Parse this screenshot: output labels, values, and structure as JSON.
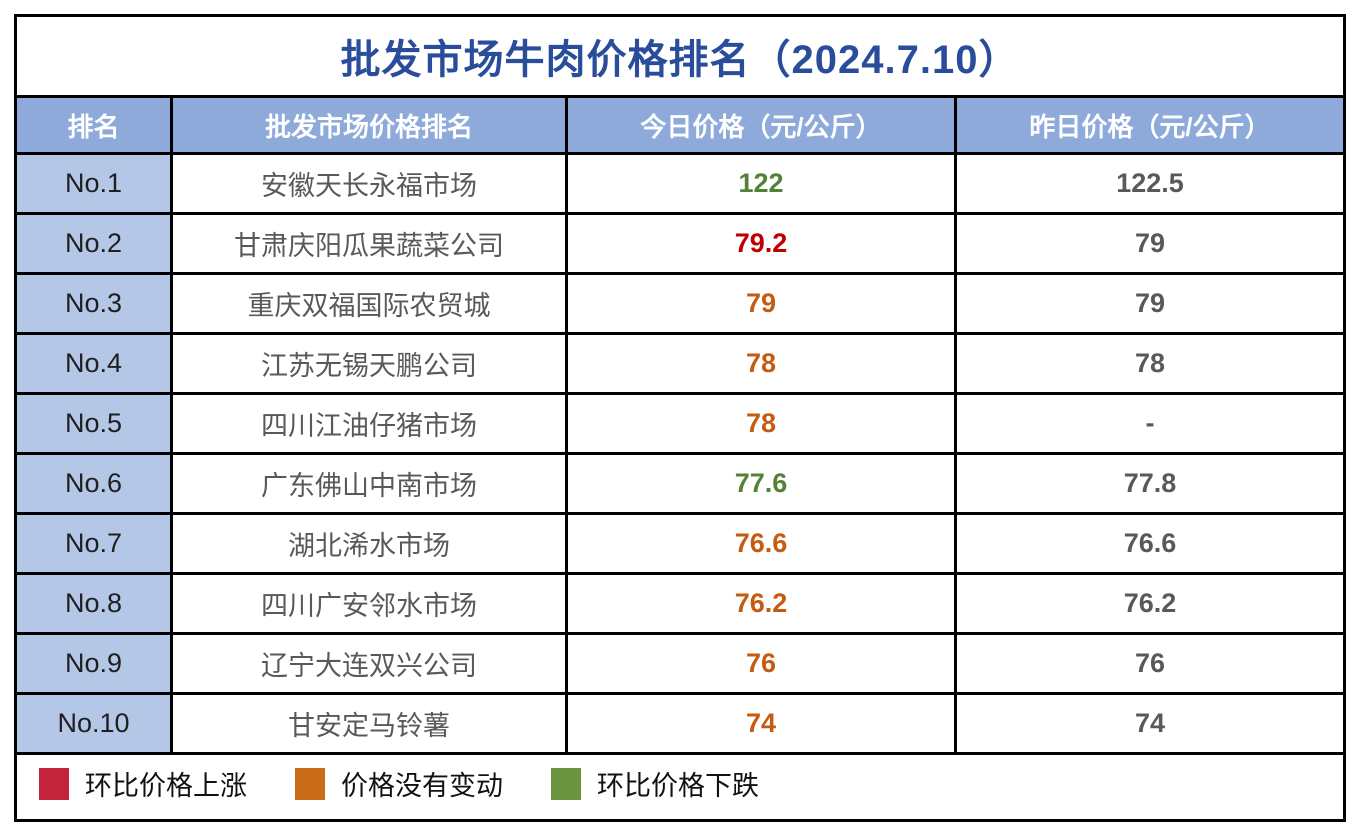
{
  "title": "批发市场牛肉价格排名（2024.7.10）",
  "table": {
    "headers": [
      "排名",
      "批发市场价格排名",
      "今日价格（元/公斤）",
      "昨日价格（元/公斤）"
    ],
    "rows": [
      {
        "rank": "No.1",
        "market": "安徽天长永福市场",
        "today": "122",
        "today_status": "down",
        "yesterday": "122.5"
      },
      {
        "rank": "No.2",
        "market": "甘肃庆阳瓜果蔬菜公司",
        "today": "79.2",
        "today_status": "up",
        "yesterday": "79"
      },
      {
        "rank": "No.3",
        "market": "重庆双福国际农贸城",
        "today": "79",
        "today_status": "flat",
        "yesterday": "79"
      },
      {
        "rank": "No.4",
        "market": "江苏无锡天鹏公司",
        "today": "78",
        "today_status": "flat",
        "yesterday": "78"
      },
      {
        "rank": "No.5",
        "market": "四川江油仔猪市场",
        "today": "78",
        "today_status": "flat",
        "yesterday": "-"
      },
      {
        "rank": "No.6",
        "market": "广东佛山中南市场",
        "today": "77.6",
        "today_status": "down",
        "yesterday": "77.8"
      },
      {
        "rank": "No.7",
        "market": "湖北浠水市场",
        "today": "76.6",
        "today_status": "flat",
        "yesterday": "76.6"
      },
      {
        "rank": "No.8",
        "market": "四川广安邻水市场",
        "today": "76.2",
        "today_status": "flat",
        "yesterday": "76.2"
      },
      {
        "rank": "No.9",
        "market": "辽宁大连双兴公司",
        "today": "76",
        "today_status": "flat",
        "yesterday": "76"
      },
      {
        "rank": "No.10",
        "market": "甘安定马铃薯",
        "today": "74",
        "today_status": "flat",
        "yesterday": "74"
      }
    ]
  },
  "legend": [
    {
      "label": "环比价格上涨",
      "color": "#c4233c",
      "status": "up"
    },
    {
      "label": "价格没有变动",
      "color": "#ca6c1a",
      "status": "flat"
    },
    {
      "label": "环比价格下跌",
      "color": "#6a9440",
      "status": "down"
    }
  ],
  "colors": {
    "title": "#2a4d9b",
    "header_bg": "#8eaadb",
    "rank_bg": "#b4c7e7",
    "border": "#000000",
    "yesterday_text": "#595959",
    "status": {
      "up": "#c00000",
      "flat": "#c55a11",
      "down": "#548235"
    }
  },
  "chart_data": {
    "type": "table",
    "title": "批发市场牛肉价格排名（2024.7.10）",
    "columns": [
      "排名",
      "批发市场价格排名",
      "今日价格（元/公斤）",
      "昨日价格（元/公斤）"
    ],
    "rows": [
      [
        "No.1",
        "安徽天长永福市场",
        122,
        122.5
      ],
      [
        "No.2",
        "甘肃庆阳瓜果蔬菜公司",
        79.2,
        79
      ],
      [
        "No.3",
        "重庆双福国际农贸城",
        79,
        79
      ],
      [
        "No.4",
        "江苏无锡天鹏公司",
        78,
        78
      ],
      [
        "No.5",
        "四川江油仔猪市场",
        78,
        "-"
      ],
      [
        "No.6",
        "广东佛山中南市场",
        77.6,
        77.8
      ],
      [
        "No.7",
        "湖北浠水市场",
        76.6,
        76.6
      ],
      [
        "No.8",
        "四川广安邻水市场",
        76.2,
        76.2
      ],
      [
        "No.9",
        "辽宁大连双兴公司",
        76,
        76
      ],
      [
        "No.10",
        "甘安定马铃薯",
        74,
        74
      ]
    ],
    "today_trend": [
      "down",
      "up",
      "flat",
      "flat",
      "flat",
      "down",
      "flat",
      "flat",
      "flat",
      "flat"
    ],
    "legend": [
      "环比价格上涨",
      "价格没有变动",
      "环比价格下跌"
    ]
  }
}
